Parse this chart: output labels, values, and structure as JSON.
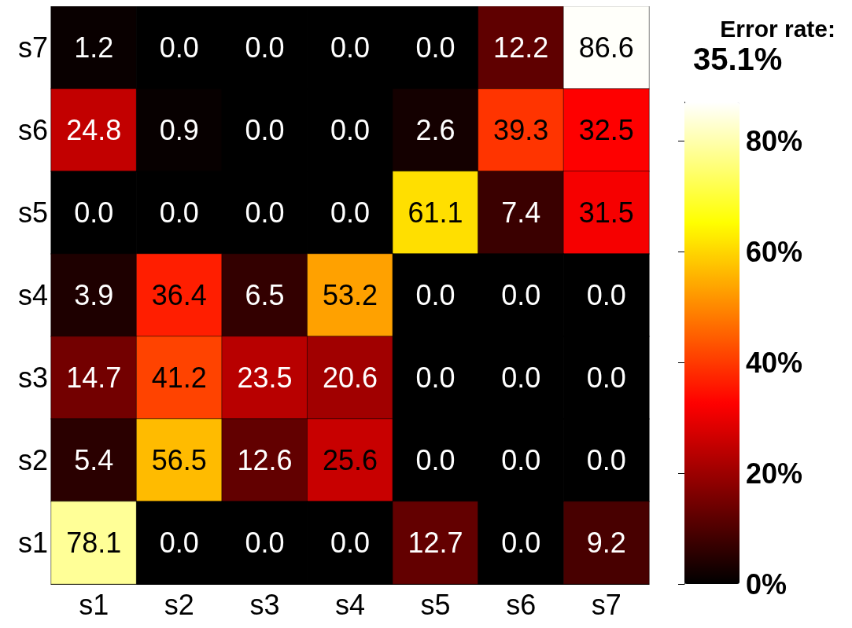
{
  "chart_data": {
    "type": "heatmap",
    "title": "Error rate:",
    "subtitle": "35.1%",
    "categories": [
      "s1",
      "s2",
      "s3",
      "s4",
      "s5",
      "s6",
      "s7"
    ],
    "y_categories": [
      "s7",
      "s6",
      "s5",
      "s4",
      "s3",
      "s2",
      "s1"
    ],
    "cells": [
      [
        1.2,
        0.0,
        0.0,
        0.0,
        0.0,
        12.2,
        86.6
      ],
      [
        24.8,
        0.9,
        0.0,
        0.0,
        2.6,
        39.3,
        32.5
      ],
      [
        0.0,
        0.0,
        0.0,
        0.0,
        61.1,
        7.4,
        31.5
      ],
      [
        3.9,
        36.4,
        6.5,
        53.2,
        0.0,
        0.0,
        0.0
      ],
      [
        14.7,
        41.2,
        23.5,
        20.6,
        0.0,
        0.0,
        0.0
      ],
      [
        5.4,
        56.5,
        12.6,
        25.6,
        0.0,
        0.0,
        0.0
      ],
      [
        78.1,
        0.0,
        0.0,
        0.0,
        12.7,
        0.0,
        9.2
      ]
    ],
    "cell_labels": [
      [
        "1.2",
        "0.0",
        "0.0",
        "0.0",
        "0.0",
        "12.2",
        "86.6"
      ],
      [
        "24.8",
        "0.9",
        "0.0",
        "0.0",
        "2.6",
        "39.3",
        "32.5"
      ],
      [
        "0.0",
        "0.0",
        "0.0",
        "0.0",
        "61.1",
        "7.4",
        "31.5"
      ],
      [
        "3.9",
        "36.4",
        "6.5",
        "53.2",
        "0.0",
        "0.0",
        "0.0"
      ],
      [
        "14.7",
        "41.2",
        "23.5",
        "20.6",
        "0.0",
        "0.0",
        "0.0"
      ],
      [
        "5.4",
        "56.5",
        "12.6",
        "25.6",
        "0.0",
        "0.0",
        "0.0"
      ],
      [
        "78.1",
        "0.0",
        "0.0",
        "0.0",
        "12.7",
        "0.0",
        "9.2"
      ]
    ],
    "clim": [
      0,
      87
    ],
    "cticks": [
      {
        "value": 0,
        "label": "0%"
      },
      {
        "value": 20,
        "label": "20%"
      },
      {
        "value": 40,
        "label": "40%"
      },
      {
        "value": 60,
        "label": "60%"
      },
      {
        "value": 80,
        "label": "80%"
      }
    ]
  }
}
